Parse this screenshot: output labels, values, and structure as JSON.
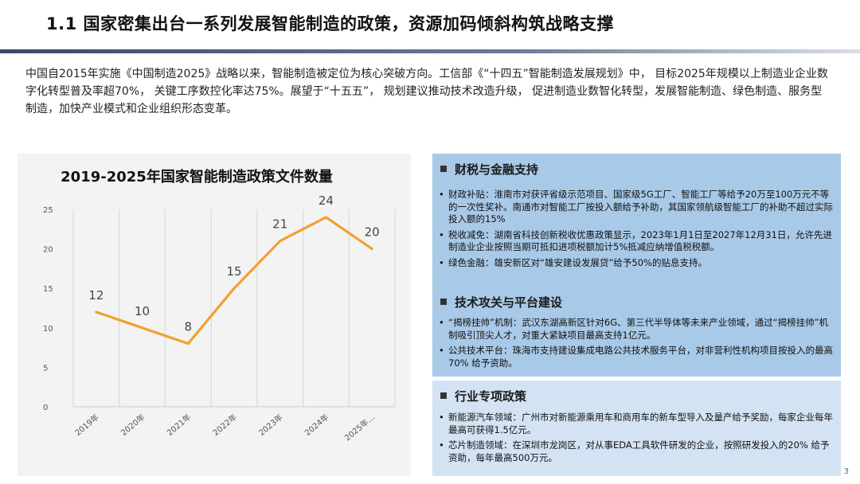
{
  "title": "1.1 国家密集出台一系列发展智能制造的政策，资源加码倾斜构筑战略支撑",
  "intro": "中国自2015年实施《中国制造2025》战略以来，智能制造被定位为核心突破方向。工信部《“十四五”智能制造发展规划》中， 目标2025年规模以上制造业企业数字化转型普及率超70%， 关键工序数控化率达75%。展望于“十五五”， 规划建议推动技术改造升级， 促进制造业数智化转型，发展智能制造、绿色制造、服务型制造，加快产业模式和企业组织形态变革。",
  "chart_data": {
    "type": "line",
    "title": "2019-2025年国家智能制造政策文件数量",
    "categories": [
      "2019年",
      "2020年",
      "2021年",
      "2022年",
      "2023年",
      "2024年",
      "2025年…"
    ],
    "values": [
      12,
      10,
      8,
      15,
      21,
      24,
      20
    ],
    "ylim": [
      0,
      25
    ],
    "yticks": [
      0,
      5,
      10,
      15,
      20,
      25
    ],
    "grid": "vertical",
    "color": "#f0a22e",
    "xlabel": "",
    "ylabel": ""
  },
  "panels": [
    {
      "heading": "财税与金融支持",
      "bullets": [
        "财政补贴：淮南市对获评省级示范项目、国家级5G工厂、智能工厂等给予20万至100万元不等的一次性奖补。南通市对智能工厂按投入额给予补助，其国家领航级智能工厂的补助不超过实际投入额的15%",
        "税收减免：湖南省科技创新税收优惠政策显示，2023年1月1日至2027年12月31日，允许先进制造业企业按照当期可抵扣进项税额加计5%抵减应纳增值税税额。",
        "绿色金融：雄安新区对“雄安建设发展贷”给予50%的贴息支持。"
      ]
    },
    {
      "heading": "技术攻关与平台建设",
      "bullets": [
        "“揭榜挂帅”机制：武汉东湖高新区针对6G、第三代半导体等未来产业领域，通过“揭榜挂帅”机制吸引顶尖人才，对重大紧缺项目最高支持1亿元。",
        "公共技术平台：珠海市支持建设集成电路公共技术服务平台，对非营利性机构项目按投入的最高70% 给予资助。"
      ]
    },
    {
      "heading": "行业专项政策",
      "bullets": [
        "新能源汽车领域：广州市对新能源乘用车和商用车的新车型导入及量产给予奖励，每家企业每年最高可获得1.5亿元。",
        "芯片制造领域：在深圳市龙岗区，对从事EDA工具软件研发的企业，按照研发投入的20% 给予资助，每年最高500万元。"
      ]
    }
  ],
  "page_number": "3"
}
